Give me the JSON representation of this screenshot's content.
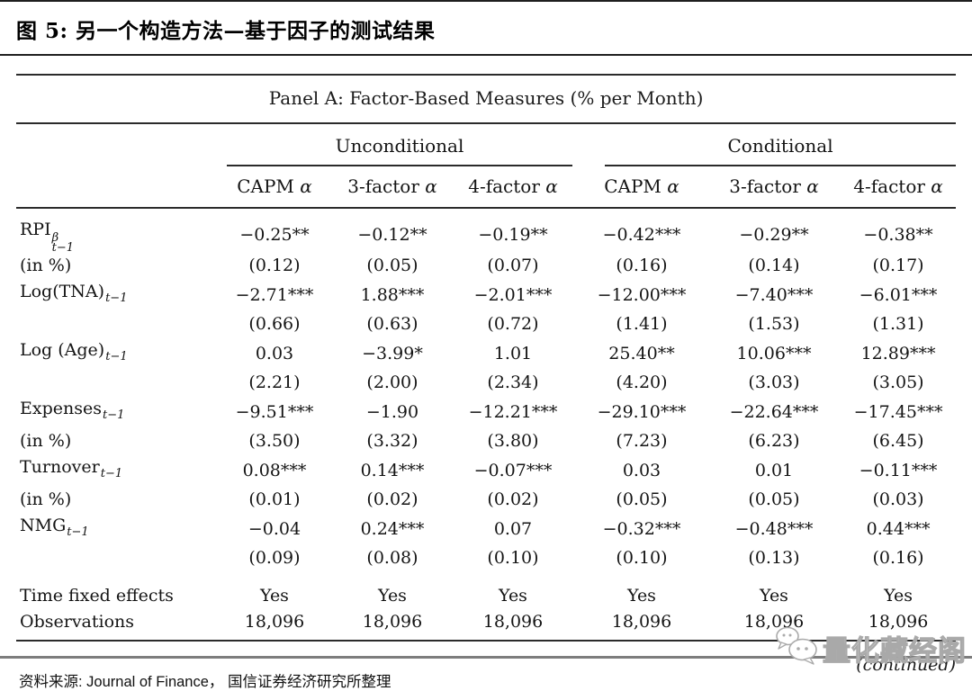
{
  "header": {
    "title": "图 5: 另一个构造方法—基于因子的测试结果"
  },
  "table": {
    "panel_title": "Panel A: Factor-Based Measures (% per Month)",
    "groups": [
      {
        "label": "Unconditional"
      },
      {
        "label": "Conditional"
      }
    ],
    "columns": [
      {
        "text": "CAPM ",
        "sym": "α"
      },
      {
        "text": "3-factor ",
        "sym": "α"
      },
      {
        "text": "4-factor ",
        "sym": "α"
      },
      {
        "text": "CAPM ",
        "sym": "α"
      },
      {
        "text": "3-factor ",
        "sym": "α"
      },
      {
        "text": "4-factor ",
        "sym": "α"
      }
    ],
    "rows": [
      {
        "label": {
          "base": "RPI",
          "sup": "β",
          "sub": "t−1"
        },
        "cells": [
          "−0.25**",
          "−0.12**",
          "−0.19**",
          "−0.42***",
          "−0.29**",
          "−0.38**"
        ]
      },
      {
        "label": {
          "base": "(in %)"
        },
        "cells": [
          "(0.12)",
          "(0.05)",
          "(0.07)",
          "(0.16)",
          "(0.14)",
          "(0.17)"
        ]
      },
      {
        "label": {
          "base": "Log(TNA)",
          "sub": "t−1"
        },
        "cells": [
          "−2.71***",
          "1.88***",
          "−2.01***",
          "−12.00***",
          "−7.40***",
          "−6.01***"
        ]
      },
      {
        "label": {
          "base": ""
        },
        "cells": [
          "(0.66)",
          "(0.63)",
          "(0.72)",
          "(1.41)",
          "(1.53)",
          "(1.31)"
        ]
      },
      {
        "label": {
          "base": "Log (Age)",
          "sub": "t−1"
        },
        "cells": [
          "0.03",
          "−3.99*",
          "1.01",
          "25.40**",
          "10.06***",
          "12.89***"
        ]
      },
      {
        "label": {
          "base": ""
        },
        "cells": [
          "(2.21)",
          "(2.00)",
          "(2.34)",
          "(4.20)",
          "(3.03)",
          "(3.05)"
        ]
      },
      {
        "label": {
          "base": "Expenses",
          "sub": "t−1"
        },
        "cells": [
          "−9.51***",
          "−1.90",
          "−12.21***",
          "−29.10***",
          "−22.64***",
          "−17.45***"
        ]
      },
      {
        "label": {
          "base": "(in %)"
        },
        "cells": [
          "(3.50)",
          "(3.32)",
          "(3.80)",
          "(7.23)",
          "(6.23)",
          "(6.45)"
        ]
      },
      {
        "label": {
          "base": "Turnover",
          "sub": "t−1"
        },
        "cells": [
          "0.08***",
          "0.14***",
          "−0.07***",
          "0.03",
          "0.01",
          "−0.11***"
        ]
      },
      {
        "label": {
          "base": "(in %)"
        },
        "cells": [
          "(0.01)",
          "(0.02)",
          "(0.02)",
          "(0.05)",
          "(0.05)",
          "(0.03)"
        ]
      },
      {
        "label": {
          "base": "NMG",
          "sub": "t−1"
        },
        "cells": [
          "−0.04",
          "0.24***",
          "0.07",
          "−0.32***",
          "−0.48***",
          "0.44***"
        ]
      },
      {
        "label": {
          "base": ""
        },
        "cells": [
          "(0.09)",
          "(0.08)",
          "(0.10)",
          "(0.10)",
          "(0.13)",
          "(0.16)"
        ]
      },
      {
        "label": {
          "base": "Time fixed effects"
        },
        "spacer_before": true,
        "cells": [
          "Yes",
          "Yes",
          "Yes",
          "Yes",
          "Yes",
          "Yes"
        ]
      },
      {
        "label": {
          "base": "Observations"
        },
        "cells": [
          "18,096",
          "18,096",
          "18,096",
          "18,096",
          "18,096",
          "18,096"
        ]
      }
    ]
  },
  "continued_note": "(continued)",
  "watermark": {
    "text": "量化藏经阁",
    "icon": "wechat-chat-bubbles-icon"
  },
  "footer": {
    "source": "资料来源: Journal of Finance， 国信证券经济研究所整理"
  },
  "colors": {
    "rule_black": "#1f1f1f",
    "text": "#141414",
    "separator_gray": "#7d7d7d",
    "watermark_gray": "#a9a9a9"
  }
}
